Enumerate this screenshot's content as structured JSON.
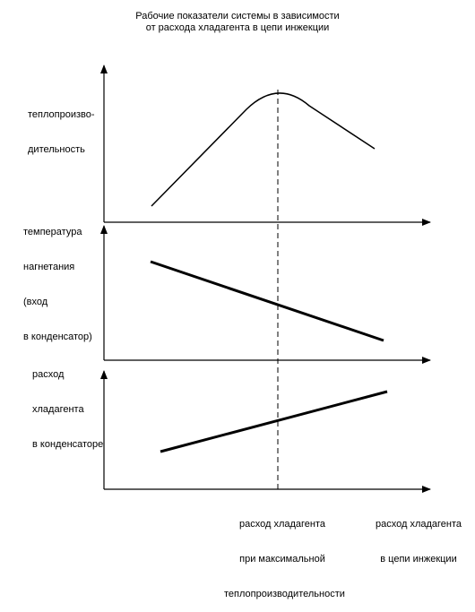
{
  "title": {
    "line1": "Рабочие показатели системы в зависимости",
    "line2": "от расхода хладагента в цепи инжекции"
  },
  "y_labels": {
    "capacity": [
      "теплопроизво-",
      "дительность"
    ],
    "discharge_temperature": [
      "температура",
      "нагнетания",
      "(вход",
      "в конденсатор)"
    ],
    "condenser_flow": [
      "расход",
      "хладагента",
      "в конденсаторе"
    ]
  },
  "x_labels": {
    "optimum": [
      "расход хладагента",
      "при максимальной",
      "теплопроизводительности"
    ],
    "axis": [
      "расход хладагента",
      "в цепи инжекции"
    ]
  },
  "colors": {
    "ink": "#000000",
    "background": "#ffffff"
  }
}
